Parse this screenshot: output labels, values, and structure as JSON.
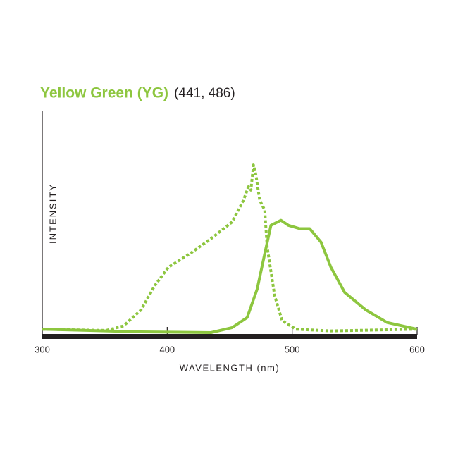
{
  "chart_data": {
    "type": "line",
    "title": "Yellow Green (YG)",
    "subtitle": "(441, 486)",
    "title_color": "#8dc63f",
    "x_label": "WAVELENGTH (nm)",
    "y_label": "INTENSITY",
    "xlim": [
      300,
      600
    ],
    "xticks": [
      300,
      400,
      500,
      600
    ],
    "ylim": [
      0,
      132
    ],
    "series": [
      {
        "color": "#8dc63f",
        "dashed": true,
        "x": [
          300,
          351,
          365,
          379,
          390,
          401,
          418,
          435,
          452,
          461,
          465,
          467,
          469,
          471,
          474,
          478,
          480,
          486,
          492,
          503,
          531,
          600
        ],
        "values": [
          2,
          1.3,
          4,
          13.5,
          28,
          39,
          47,
          56,
          66,
          79,
          87,
          85,
          100,
          94,
          79,
          73,
          51,
          22,
          7,
          2,
          1,
          2
        ]
      },
      {
        "color": "#8dc63f",
        "dashed": false,
        "x": [
          300,
          379,
          435,
          452,
          464,
          472,
          478,
          483,
          491,
          497,
          506,
          514,
          523,
          531,
          542,
          559,
          576,
          600
        ],
        "values": [
          2,
          0.4,
          0,
          3,
          9,
          26,
          47,
          64,
          67,
          64,
          62,
          62,
          54,
          39,
          24,
          13.5,
          6,
          2
        ]
      }
    ]
  }
}
